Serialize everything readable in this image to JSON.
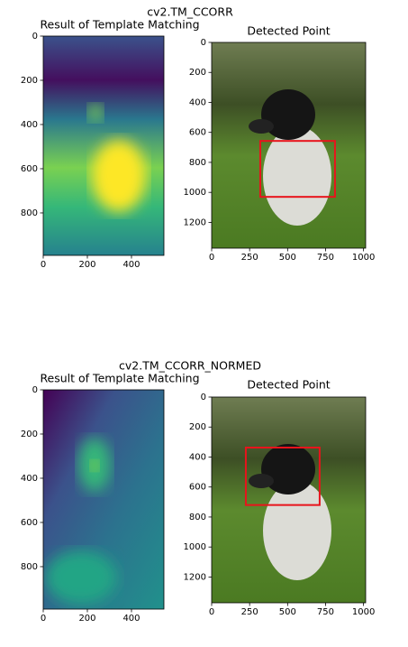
{
  "suptitles": [
    "cv2.TM_CCORR",
    "cv2.TM_CCORR_NORMED"
  ],
  "chart_data": [
    {
      "type": "image",
      "title": "Result of Template Matching",
      "xlim": [
        0,
        547
      ],
      "ylim": [
        992,
        0
      ],
      "xticks": [
        0,
        200,
        400
      ],
      "yticks": [
        0,
        200,
        400,
        600,
        800
      ]
    },
    {
      "type": "image",
      "title": "Detected Point",
      "xlim": [
        0,
        1014
      ],
      "ylim": [
        1372,
        0
      ],
      "xticks": [
        0,
        250,
        500,
        750,
        1000
      ],
      "yticks": [
        0,
        200,
        400,
        600,
        800,
        1000,
        1200
      ],
      "box": {
        "x0": 320,
        "x1": 812,
        "y0": 657,
        "y1": 1030
      },
      "box_color": "#e8141c"
    },
    {
      "type": "image",
      "title": "Result of Template Matching",
      "xlim": [
        0,
        547
      ],
      "ylim": [
        992,
        0
      ],
      "xticks": [
        0,
        200,
        400
      ],
      "yticks": [
        0,
        200,
        400,
        600,
        800
      ]
    },
    {
      "type": "image",
      "title": "Detected Point",
      "xlim": [
        0,
        1014
      ],
      "ylim": [
        1372,
        0
      ],
      "xticks": [
        0,
        250,
        500,
        750,
        1000
      ],
      "yticks": [
        0,
        200,
        400,
        600,
        800,
        1000,
        1200
      ],
      "box": {
        "x0": 225,
        "x1": 711,
        "y0": 337,
        "y1": 720
      },
      "box_color": "#e8141c"
    }
  ]
}
